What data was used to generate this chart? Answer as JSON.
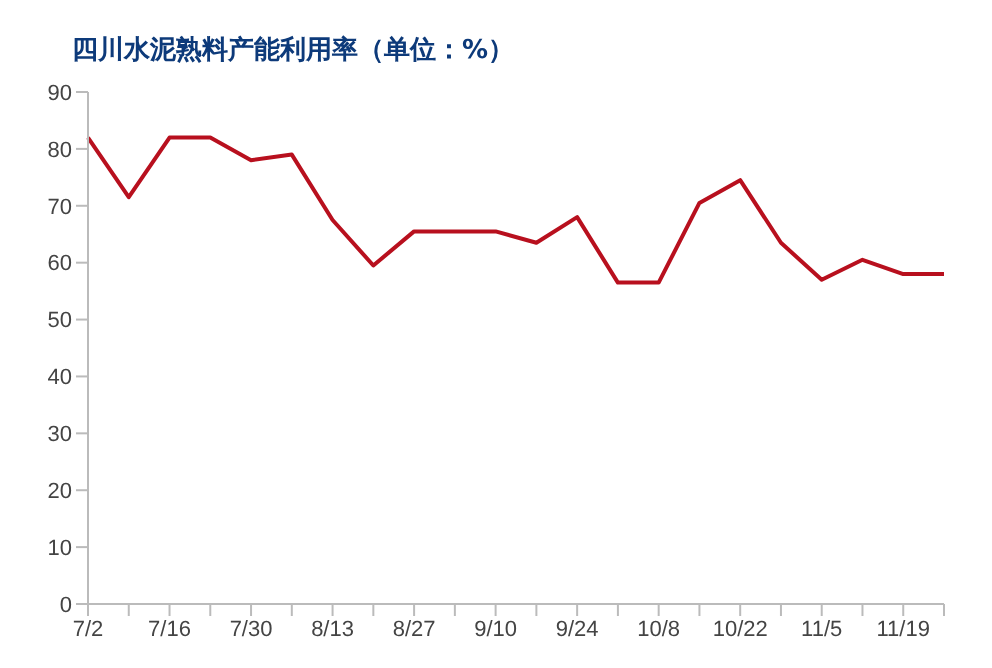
{
  "chart_data": {
    "type": "line",
    "title": "四川水泥熟料产能利用率（单位：%）",
    "categories": [
      "7/2",
      null,
      "7/16",
      null,
      "7/30",
      null,
      "8/13",
      null,
      "8/27",
      null,
      "9/10",
      null,
      "9/24",
      null,
      "10/8",
      null,
      "10/22",
      null,
      "11/5",
      null,
      "11/19",
      null
    ],
    "series": [
      {
        "color": "#b8101e",
        "values": [
          82,
          71.5,
          82,
          82,
          78,
          79,
          67.5,
          59.5,
          65.5,
          65.5,
          65.5,
          63.5,
          68,
          56.5,
          56.5,
          70.5,
          74.5,
          63.5,
          57,
          60.5,
          58,
          58
        ]
      }
    ],
    "ylim": [
      0,
      90
    ],
    "yticks": [
      0,
      10,
      20,
      30,
      40,
      50,
      60,
      70,
      80,
      90
    ],
    "grid": false,
    "legend": false,
    "marker": "none",
    "line_style": "solid"
  }
}
